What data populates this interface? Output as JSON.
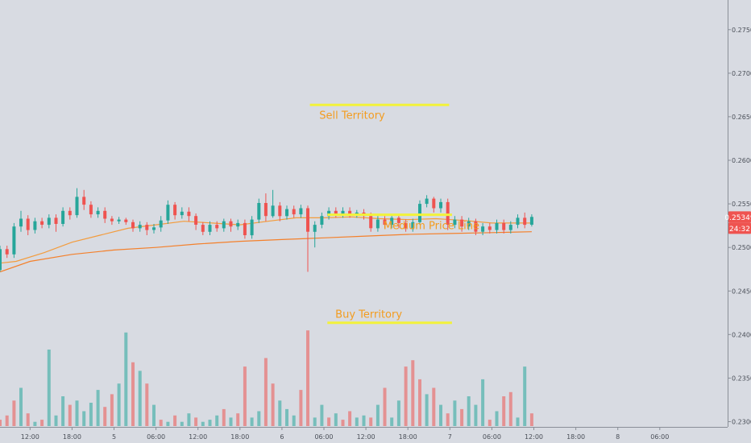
{
  "chart_data": {
    "type": "candlestick",
    "title": "",
    "y_ticks": [
      "0.27500",
      "0.27000",
      "0.26500",
      "0.26000",
      "0.25500",
      "0.25000",
      "0.24500",
      "0.24000",
      "0.23500",
      "0.23000"
    ],
    "y_tick_values": [
      0.275,
      0.27,
      0.265,
      0.26,
      0.255,
      0.25,
      0.245,
      0.24,
      0.235,
      0.23
    ],
    "ylim": [
      0.2294,
      0.2784
    ],
    "x_ticks": [
      "12:00",
      "18:00",
      "5",
      "06:00",
      "12:00",
      "18:00",
      "6",
      "06:00",
      "12:00",
      "18:00",
      "7",
      "06:00",
      "12:00",
      "18:00",
      "8",
      "06:00"
    ],
    "x_tick_hours": [
      12,
      18,
      24,
      30,
      36,
      42,
      48,
      54,
      60,
      66,
      72,
      78,
      84,
      90,
      96,
      102
    ],
    "x_range_hours": [
      7.7,
      111.7
    ],
    "last_price": {
      "value": "0.25349",
      "countdown": "24:32",
      "color": "#ef5350"
    },
    "up_color": "#26a69a",
    "down_color": "#ef5350",
    "candles": [
      [
        7.7,
        0.2474,
        0.2498,
        0.2472,
        0.2502
      ],
      [
        8.7,
        0.2498,
        0.2492,
        0.2488,
        0.2502
      ],
      [
        9.7,
        0.2492,
        0.2524,
        0.2488,
        0.2528
      ],
      [
        10.7,
        0.2524,
        0.2533,
        0.2518,
        0.2542
      ],
      [
        11.7,
        0.2533,
        0.252,
        0.2514,
        0.2537
      ],
      [
        12.7,
        0.252,
        0.253,
        0.2516,
        0.2534
      ],
      [
        13.7,
        0.253,
        0.2526,
        0.2522,
        0.2534
      ],
      [
        14.7,
        0.2526,
        0.2534,
        0.2522,
        0.2538
      ],
      [
        15.7,
        0.2534,
        0.2527,
        0.2518,
        0.2538
      ],
      [
        16.7,
        0.2527,
        0.2542,
        0.2524,
        0.2546
      ],
      [
        17.7,
        0.2542,
        0.2537,
        0.2532,
        0.2546
      ],
      [
        18.7,
        0.2537,
        0.2558,
        0.2534,
        0.2568
      ],
      [
        19.7,
        0.2558,
        0.2549,
        0.2543,
        0.2566
      ],
      [
        20.7,
        0.2549,
        0.2538,
        0.2534,
        0.2553
      ],
      [
        21.7,
        0.2538,
        0.2542,
        0.2534,
        0.2546
      ],
      [
        22.7,
        0.2542,
        0.2533,
        0.2528,
        0.2546
      ],
      [
        23.7,
        0.2533,
        0.253,
        0.2526,
        0.2536
      ],
      [
        24.7,
        0.253,
        0.2532,
        0.2527,
        0.2535
      ],
      [
        25.7,
        0.2532,
        0.2529,
        0.2526,
        0.2534
      ],
      [
        26.7,
        0.2529,
        0.2522,
        0.2518,
        0.2532
      ],
      [
        27.7,
        0.2522,
        0.2526,
        0.2518,
        0.253
      ],
      [
        28.7,
        0.2526,
        0.252,
        0.2514,
        0.2529
      ],
      [
        29.7,
        0.252,
        0.2523,
        0.2516,
        0.2527
      ],
      [
        30.7,
        0.2523,
        0.2531,
        0.2518,
        0.2536
      ],
      [
        31.7,
        0.2531,
        0.2549,
        0.2527,
        0.2554
      ],
      [
        32.7,
        0.2549,
        0.2537,
        0.2532,
        0.2552
      ],
      [
        33.7,
        0.2537,
        0.2541,
        0.2533,
        0.2546
      ],
      [
        34.7,
        0.2541,
        0.2536,
        0.253,
        0.2546
      ],
      [
        35.7,
        0.2536,
        0.2526,
        0.252,
        0.2539
      ],
      [
        36.7,
        0.2526,
        0.2518,
        0.2514,
        0.2529
      ],
      [
        37.7,
        0.2518,
        0.2526,
        0.2514,
        0.253
      ],
      [
        38.7,
        0.2526,
        0.2522,
        0.2518,
        0.253
      ],
      [
        39.7,
        0.2522,
        0.253,
        0.2518,
        0.2533
      ],
      [
        40.7,
        0.253,
        0.2524,
        0.2518,
        0.2533
      ],
      [
        41.7,
        0.2524,
        0.2528,
        0.252,
        0.2532
      ],
      [
        42.7,
        0.2528,
        0.2514,
        0.251,
        0.2532
      ],
      [
        43.7,
        0.2514,
        0.2532,
        0.251,
        0.2536
      ],
      [
        44.7,
        0.2532,
        0.2551,
        0.2528,
        0.2556
      ],
      [
        45.7,
        0.2551,
        0.2536,
        0.253,
        0.2562
      ],
      [
        46.7,
        0.2536,
        0.2548,
        0.2534,
        0.2566
      ],
      [
        47.7,
        0.2548,
        0.2536,
        0.253,
        0.2552
      ],
      [
        48.7,
        0.2536,
        0.2544,
        0.2532,
        0.2548
      ],
      [
        49.7,
        0.2544,
        0.2538,
        0.2534,
        0.2548
      ],
      [
        50.7,
        0.2538,
        0.2545,
        0.2534,
        0.2549
      ],
      [
        51.7,
        0.2545,
        0.2518,
        0.2472,
        0.2548
      ],
      [
        52.7,
        0.2518,
        0.2526,
        0.25,
        0.253
      ],
      [
        53.7,
        0.2526,
        0.2536,
        0.2522,
        0.254
      ],
      [
        54.7,
        0.2536,
        0.2542,
        0.2532,
        0.2546
      ],
      [
        55.7,
        0.2542,
        0.2538,
        0.2534,
        0.2546
      ],
      [
        56.7,
        0.2538,
        0.2542,
        0.2534,
        0.2546
      ],
      [
        57.7,
        0.2542,
        0.2538,
        0.2534,
        0.2546
      ],
      [
        58.7,
        0.2538,
        0.254,
        0.2534,
        0.2543
      ],
      [
        59.7,
        0.254,
        0.2536,
        0.2532,
        0.2544
      ],
      [
        60.7,
        0.2536,
        0.2522,
        0.2518,
        0.254
      ],
      [
        61.7,
        0.2522,
        0.2532,
        0.2518,
        0.2536
      ],
      [
        62.7,
        0.2532,
        0.2526,
        0.2522,
        0.2536
      ],
      [
        63.7,
        0.2526,
        0.2534,
        0.2522,
        0.2538
      ],
      [
        64.7,
        0.2534,
        0.2528,
        0.2522,
        0.2538
      ],
      [
        65.7,
        0.2528,
        0.2522,
        0.2518,
        0.2532
      ],
      [
        66.7,
        0.2522,
        0.2529,
        0.2518,
        0.2533
      ],
      [
        67.7,
        0.2529,
        0.255,
        0.2526,
        0.2554
      ],
      [
        68.7,
        0.255,
        0.2556,
        0.2546,
        0.256
      ],
      [
        69.7,
        0.2556,
        0.2545,
        0.254,
        0.2558
      ],
      [
        70.7,
        0.2545,
        0.2552,
        0.254,
        0.2556
      ],
      [
        71.7,
        0.2552,
        0.2526,
        0.252,
        0.2556
      ],
      [
        72.7,
        0.2526,
        0.2532,
        0.2522,
        0.2536
      ],
      [
        73.7,
        0.2532,
        0.2524,
        0.2518,
        0.2536
      ],
      [
        74.7,
        0.2524,
        0.253,
        0.252,
        0.2534
      ],
      [
        75.7,
        0.253,
        0.2518,
        0.2514,
        0.2533
      ],
      [
        76.7,
        0.2518,
        0.2524,
        0.2514,
        0.2528
      ],
      [
        77.7,
        0.2524,
        0.252,
        0.2516,
        0.2528
      ],
      [
        78.7,
        0.252,
        0.2528,
        0.2516,
        0.2532
      ],
      [
        79.7,
        0.2528,
        0.252,
        0.2516,
        0.2532
      ],
      [
        80.7,
        0.252,
        0.2526,
        0.2516,
        0.253
      ],
      [
        81.7,
        0.2526,
        0.2534,
        0.2522,
        0.2538
      ],
      [
        82.7,
        0.2534,
        0.2526,
        0.2522,
        0.254
      ],
      [
        83.7,
        0.2526,
        0.2535,
        0.2524,
        0.2538
      ]
    ],
    "ma_fast": [
      [
        7.7,
        0.2482
      ],
      [
        10,
        0.2484
      ],
      [
        14,
        0.2494
      ],
      [
        18,
        0.2506
      ],
      [
        22,
        0.2514
      ],
      [
        26,
        0.2522
      ],
      [
        30,
        0.2526
      ],
      [
        34,
        0.253
      ],
      [
        38,
        0.2528
      ],
      [
        42,
        0.2526
      ],
      [
        46,
        0.253
      ],
      [
        50,
        0.2534
      ],
      [
        54,
        0.2534
      ],
      [
        58,
        0.2535
      ],
      [
        62,
        0.2533
      ],
      [
        66,
        0.2532
      ],
      [
        70,
        0.2533
      ],
      [
        74,
        0.2531
      ],
      [
        78,
        0.2528
      ],
      [
        83.7,
        0.2528
      ]
    ],
    "ma_slow": [
      [
        7.7,
        0.2472
      ],
      [
        12,
        0.2484
      ],
      [
        18,
        0.2492
      ],
      [
        24,
        0.2497
      ],
      [
        30,
        0.25
      ],
      [
        36,
        0.2504
      ],
      [
        42,
        0.2507
      ],
      [
        48,
        0.2509
      ],
      [
        54,
        0.2511
      ],
      [
        60,
        0.2513
      ],
      [
        66,
        0.2515
      ],
      [
        72,
        0.2516
      ],
      [
        78,
        0.2517
      ],
      [
        83.7,
        0.2518
      ]
    ],
    "ma_fast_color": "#f39c3d",
    "ma_slow_color": "#f4802b",
    "volume": [
      [
        7.7,
        3,
        "down"
      ],
      [
        8.7,
        5,
        "down"
      ],
      [
        9.7,
        12,
        "down"
      ],
      [
        10.7,
        18,
        "up"
      ],
      [
        11.7,
        6,
        "down"
      ],
      [
        12.7,
        2,
        "up"
      ],
      [
        13.7,
        3,
        "down"
      ],
      [
        14.7,
        36,
        "up"
      ],
      [
        15.7,
        5,
        "up"
      ],
      [
        16.7,
        14,
        "up"
      ],
      [
        17.7,
        10,
        "down"
      ],
      [
        18.7,
        12,
        "up"
      ],
      [
        19.7,
        7,
        "up"
      ],
      [
        20.7,
        11,
        "up"
      ],
      [
        21.7,
        17,
        "up"
      ],
      [
        22.7,
        9,
        "down"
      ],
      [
        23.7,
        15,
        "down"
      ],
      [
        24.7,
        20,
        "up"
      ],
      [
        25.7,
        44,
        "up"
      ],
      [
        26.7,
        30,
        "down"
      ],
      [
        27.7,
        26,
        "up"
      ],
      [
        28.7,
        20,
        "down"
      ],
      [
        29.7,
        10,
        "up"
      ],
      [
        30.7,
        3,
        "down"
      ],
      [
        31.7,
        2,
        "up"
      ],
      [
        32.7,
        5,
        "down"
      ],
      [
        33.7,
        2,
        "up"
      ],
      [
        34.7,
        6,
        "up"
      ],
      [
        35.7,
        4,
        "down"
      ],
      [
        36.7,
        2,
        "up"
      ],
      [
        37.7,
        3,
        "up"
      ],
      [
        38.7,
        5,
        "up"
      ],
      [
        39.7,
        8,
        "down"
      ],
      [
        40.7,
        4,
        "up"
      ],
      [
        41.7,
        6,
        "down"
      ],
      [
        42.7,
        28,
        "down"
      ],
      [
        43.7,
        4,
        "up"
      ],
      [
        44.7,
        7,
        "up"
      ],
      [
        45.7,
        32,
        "down"
      ],
      [
        46.7,
        20,
        "down"
      ],
      [
        47.7,
        12,
        "up"
      ],
      [
        48.7,
        8,
        "up"
      ],
      [
        49.7,
        5,
        "up"
      ],
      [
        50.7,
        17,
        "down"
      ],
      [
        51.7,
        45,
        "down"
      ],
      [
        52.7,
        4,
        "up"
      ],
      [
        53.7,
        10,
        "up"
      ],
      [
        54.7,
        4,
        "down"
      ],
      [
        55.7,
        6,
        "up"
      ],
      [
        56.7,
        3,
        "down"
      ],
      [
        57.7,
        7,
        "down"
      ],
      [
        58.7,
        4,
        "up"
      ],
      [
        59.7,
        5,
        "up"
      ],
      [
        60.7,
        4,
        "down"
      ],
      [
        61.7,
        10,
        "up"
      ],
      [
        62.7,
        18,
        "down"
      ],
      [
        63.7,
        4,
        "up"
      ],
      [
        64.7,
        12,
        "up"
      ],
      [
        65.7,
        28,
        "down"
      ],
      [
        66.7,
        31,
        "down"
      ],
      [
        67.7,
        22,
        "down"
      ],
      [
        68.7,
        15,
        "up"
      ],
      [
        69.7,
        18,
        "down"
      ],
      [
        70.7,
        10,
        "up"
      ],
      [
        71.7,
        6,
        "down"
      ],
      [
        72.7,
        12,
        "up"
      ],
      [
        73.7,
        8,
        "down"
      ],
      [
        74.7,
        14,
        "up"
      ],
      [
        75.7,
        10,
        "up"
      ],
      [
        76.7,
        22,
        "up"
      ],
      [
        77.7,
        3,
        "down"
      ],
      [
        78.7,
        7,
        "up"
      ],
      [
        79.7,
        14,
        "down"
      ],
      [
        80.7,
        16,
        "down"
      ],
      [
        81.7,
        4,
        "up"
      ],
      [
        82.7,
        28,
        "up"
      ],
      [
        83.7,
        6,
        "down"
      ]
    ],
    "volume_max": 50,
    "annotations": [
      {
        "label": "Sell Territory",
        "price": 0.26635,
        "x_start": 52,
        "x_end": 71.9
      },
      {
        "label": "Medium Price Line",
        "price": 0.25375,
        "x_start": 54.5,
        "x_end": 72.3
      },
      {
        "label": "Buy Territory",
        "price": 0.24135,
        "x_start": 54.5,
        "x_end": 72.3
      }
    ],
    "annotation_line_color": "#f2f23a",
    "annotation_text_color": "#f39c1f"
  }
}
